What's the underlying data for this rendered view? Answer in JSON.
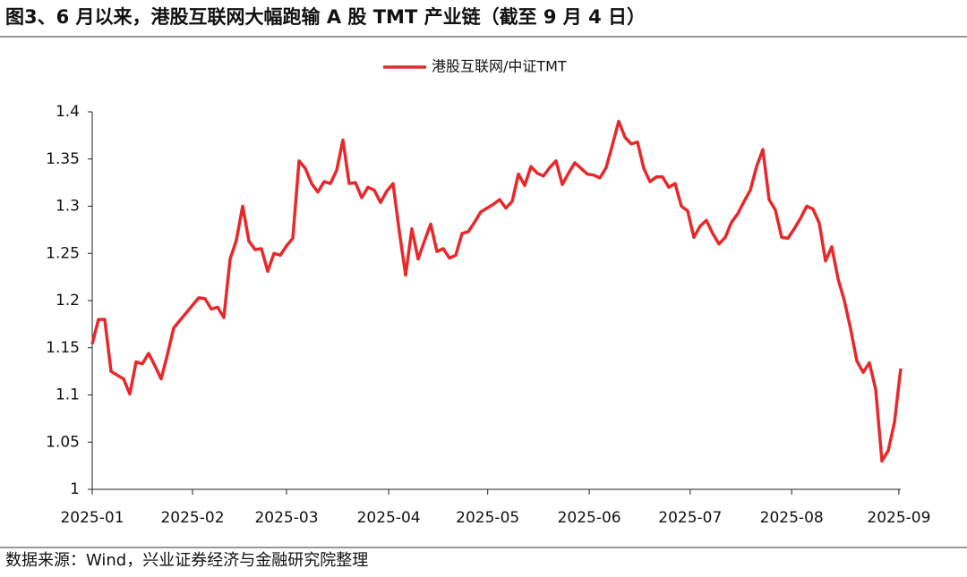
{
  "title": "图3、6 月以来，港股互联网大幅跑输 A 股 TMT 产业链（截至 9 月 4 日）",
  "source": "数据来源：Wind，兴业证券经济与金融研究院整理",
  "chart_data": {
    "type": "line",
    "series": [
      {
        "name": "港股互联网/中证TMT",
        "color": "#e8282b",
        "values": [
          1.154,
          1.18,
          1.18,
          1.125,
          1.121,
          1.117,
          1.101,
          1.135,
          1.133,
          1.144,
          1.131,
          1.117,
          1.143,
          1.171,
          1.179,
          1.187,
          1.195,
          1.203,
          1.202,
          1.191,
          1.193,
          1.182,
          1.244,
          1.264,
          1.3,
          1.263,
          1.254,
          1.255,
          1.231,
          1.25,
          1.248,
          1.258,
          1.266,
          1.348,
          1.34,
          1.324,
          1.315,
          1.326,
          1.324,
          1.338,
          1.37,
          1.324,
          1.325,
          1.309,
          1.32,
          1.317,
          1.304,
          1.316,
          1.324,
          1.273,
          1.227,
          1.276,
          1.244,
          1.263,
          1.281,
          1.252,
          1.255,
          1.245,
          1.248,
          1.271,
          1.273,
          1.283,
          1.294,
          1.298,
          1.302,
          1.307,
          1.298,
          1.305,
          1.334,
          1.322,
          1.342,
          1.335,
          1.332,
          1.341,
          1.348,
          1.323,
          1.335,
          1.346,
          1.34,
          1.334,
          1.333,
          1.33,
          1.341,
          1.365,
          1.39,
          1.373,
          1.366,
          1.368,
          1.34,
          1.326,
          1.331,
          1.331,
          1.32,
          1.324,
          1.3,
          1.295,
          1.267,
          1.279,
          1.285,
          1.271,
          1.26,
          1.267,
          1.283,
          1.292,
          1.305,
          1.317,
          1.342,
          1.36,
          1.307,
          1.296,
          1.267,
          1.266,
          1.276,
          1.287,
          1.3,
          1.297,
          1.282,
          1.242,
          1.257,
          1.223,
          1.2,
          1.17,
          1.136,
          1.124,
          1.134,
          1.106,
          1.03,
          1.041,
          1.071,
          1.128
        ]
      }
    ],
    "xlim": [
      0,
      129
    ],
    "xticks": [
      {
        "value": 0,
        "label": "2025-01"
      },
      {
        "value": 16,
        "label": "2025-02"
      },
      {
        "value": 31,
        "label": "2025-03"
      },
      {
        "value": 47.3,
        "label": "2025-04"
      },
      {
        "value": 63.1,
        "label": "2025-05"
      },
      {
        "value": 79.3,
        "label": "2025-06"
      },
      {
        "value": 95.4,
        "label": "2025-07"
      },
      {
        "value": 111.6,
        "label": "2025-08"
      },
      {
        "value": 128.7,
        "label": "2025-09"
      }
    ],
    "ylim": [
      1,
      1.4
    ],
    "yticks": [
      1,
      1.05,
      1.1,
      1.15,
      1.2,
      1.25,
      1.3,
      1.35,
      1.4
    ],
    "legend": "top"
  }
}
